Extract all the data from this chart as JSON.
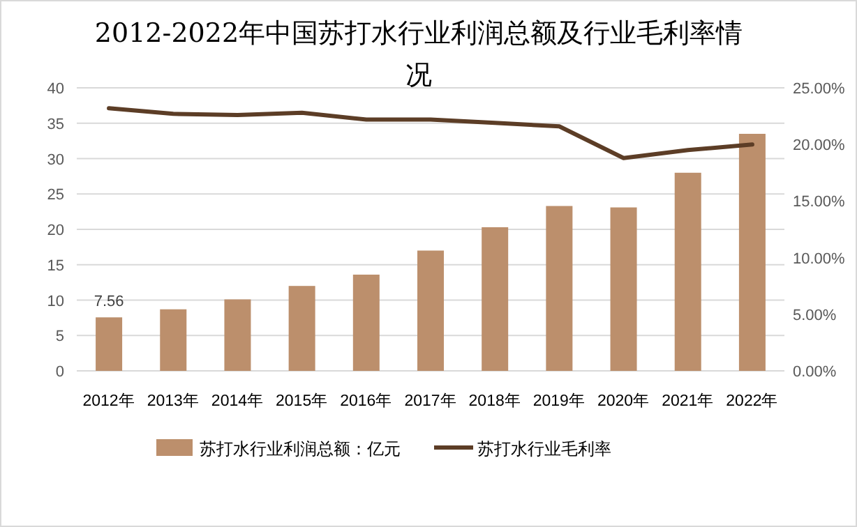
{
  "chart_data": {
    "type": "bar",
    "title": "2012-2022年中国苏打水行业利润总额及行业毛利率情况",
    "categories": [
      "2012年",
      "2013年",
      "2014年",
      "2015年",
      "2016年",
      "2017年",
      "2018年",
      "2019年",
      "2020年",
      "2021年",
      "2022年"
    ],
    "series": [
      {
        "name": "苏打水行业利润总额：亿元",
        "color": "#bc8f6c",
        "values": [
          7.56,
          8.7,
          10.1,
          12.0,
          13.6,
          17.0,
          20.3,
          23.3,
          23.1,
          28.0,
          33.5
        ],
        "value_labels": [
          "7.56",
          null,
          null,
          null,
          null,
          null,
          null,
          null,
          null,
          null,
          null
        ]
      },
      {
        "name": "苏打水行业毛利率",
        "type": "line",
        "axis": "y2",
        "color": "#5c3d26",
        "values": [
          23.2,
          22.7,
          22.6,
          22.8,
          22.2,
          22.2,
          21.9,
          21.6,
          18.8,
          19.5,
          20.0
        ]
      }
    ],
    "ylim": [
      0,
      40
    ],
    "yticks": [
      0,
      5,
      10,
      15,
      20,
      25,
      30,
      35,
      40
    ],
    "y2lim": [
      0,
      25
    ],
    "y2ticks": [
      {
        "value": 0,
        "label": "0.00%"
      },
      {
        "value": 5,
        "label": "5.00%"
      },
      {
        "value": 10,
        "label": "10.00%"
      },
      {
        "value": 15,
        "label": "15.00%"
      },
      {
        "value": 20,
        "label": "20.00%"
      },
      {
        "value": 25,
        "label": "25.00%"
      }
    ],
    "grid": "y",
    "legend": "bottom"
  }
}
